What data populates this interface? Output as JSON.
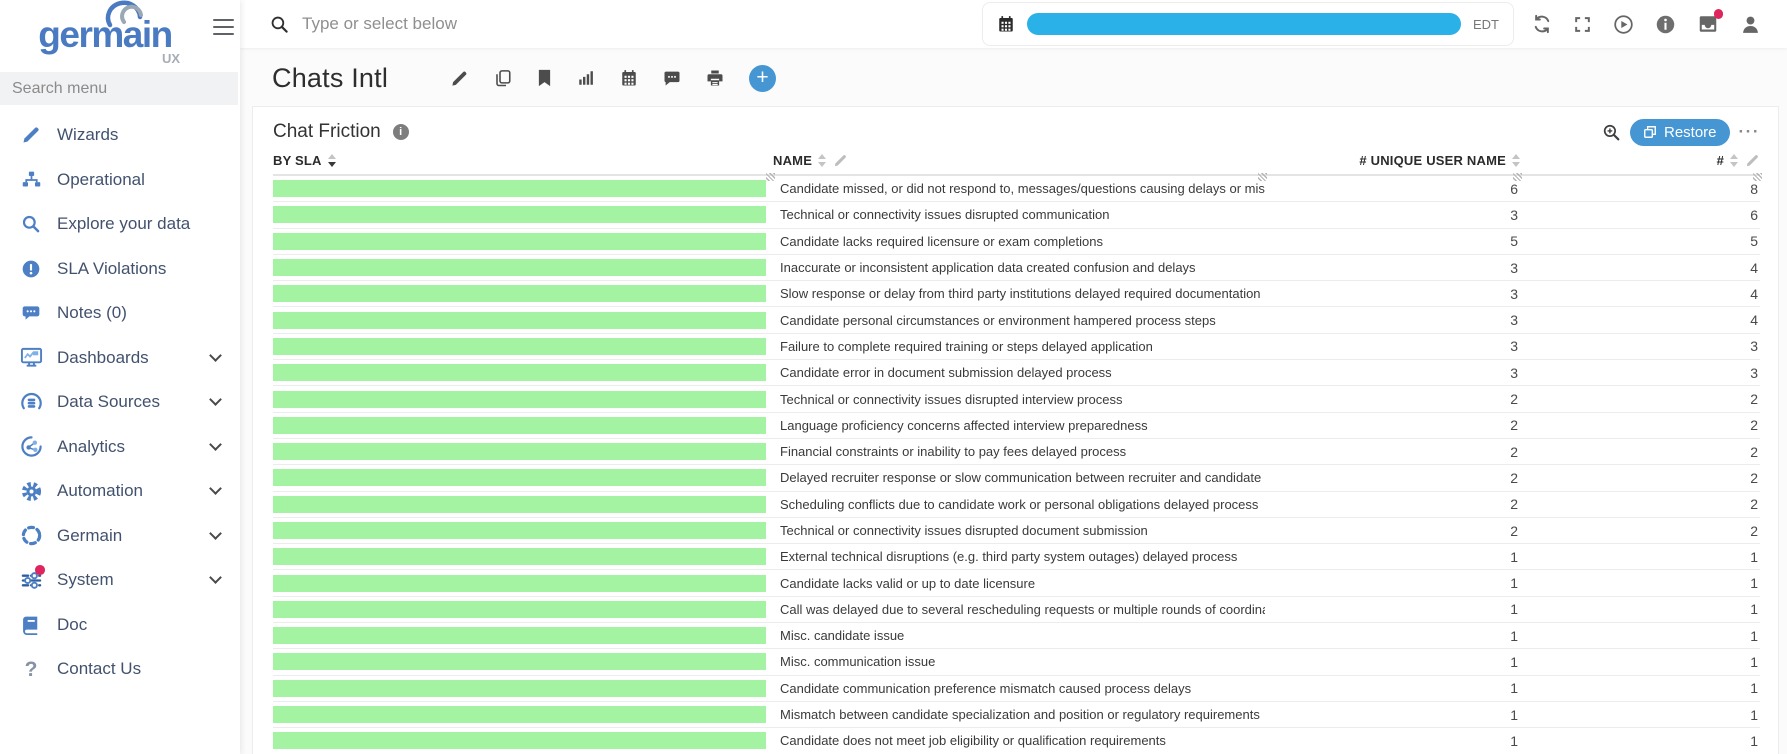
{
  "colors": {
    "sidebar_icon_blue": "#4d7fc4",
    "accent_blue": "#4596d3",
    "bar_green": "#a4f3a2",
    "redaction_blue": "#2ab1e8",
    "badge_red": "#e0245e"
  },
  "sidebar": {
    "brand": "germain",
    "brand_sub": "ux",
    "menu_search_placeholder": "Search menu",
    "items": [
      {
        "label": "Wizards",
        "icon": "pencil-icon"
      },
      {
        "label": "Operational",
        "icon": "sitemap-icon"
      },
      {
        "label": "Explore your data",
        "icon": "search-icon"
      },
      {
        "label": "SLA Violations",
        "icon": "alert-icon"
      },
      {
        "label": "Notes (0)",
        "icon": "comments-icon"
      },
      {
        "label": "Dashboards",
        "icon": "dashboard-icon",
        "expandable": true
      },
      {
        "label": "Data Sources",
        "icon": "database-icon",
        "expandable": true
      },
      {
        "label": "Analytics",
        "icon": "analytics-icon",
        "expandable": true
      },
      {
        "label": "Automation",
        "icon": "gear-icon",
        "expandable": true
      },
      {
        "label": "Germain",
        "icon": "dashed-circle-icon",
        "expandable": true
      },
      {
        "label": "System",
        "icon": "sliders-icon",
        "expandable": true,
        "badge": true
      },
      {
        "label": "Doc",
        "icon": "book-icon"
      },
      {
        "label": "Contact Us",
        "icon": "question-icon"
      }
    ]
  },
  "topbar": {
    "search_placeholder": "Type or select below",
    "timezone": "EDT",
    "actions": [
      {
        "icon": "refresh-icon"
      },
      {
        "icon": "fullscreen-icon"
      },
      {
        "icon": "play-icon"
      },
      {
        "icon": "info-icon"
      },
      {
        "icon": "inbox-icon",
        "badge": true
      },
      {
        "icon": "user-icon"
      }
    ]
  },
  "page": {
    "title": "Chats Intl",
    "tools": [
      {
        "icon": "edit-icon"
      },
      {
        "icon": "copy-icon"
      },
      {
        "icon": "bookmark-icon"
      },
      {
        "icon": "chart-bars-icon"
      },
      {
        "icon": "calendar-icon"
      },
      {
        "icon": "comment-icon"
      },
      {
        "icon": "print-icon"
      },
      {
        "icon": "add-icon"
      }
    ]
  },
  "panel": {
    "title": "Chat Friction",
    "restore_label": "Restore",
    "table": {
      "headers": [
        "BY SLA",
        "NAME",
        "# UNIQUE USER NAME",
        "#"
      ],
      "rows": [
        {
          "name": "Candidate missed, or did not respond to, messages/questions causing delays or missed miles",
          "unique_users": 6,
          "count": 8
        },
        {
          "name": "Technical or connectivity issues disrupted communication",
          "unique_users": 3,
          "count": 6
        },
        {
          "name": "Candidate lacks required licensure or exam completions",
          "unique_users": 5,
          "count": 5
        },
        {
          "name": "Inaccurate or inconsistent application data created confusion and delays",
          "unique_users": 3,
          "count": 4
        },
        {
          "name": "Slow response or delay from third party institutions delayed required documentation",
          "unique_users": 3,
          "count": 4
        },
        {
          "name": "Candidate personal circumstances or environment hampered process steps",
          "unique_users": 3,
          "count": 4
        },
        {
          "name": "Failure to complete required training or steps delayed application",
          "unique_users": 3,
          "count": 3
        },
        {
          "name": "Candidate error in document submission delayed process",
          "unique_users": 3,
          "count": 3
        },
        {
          "name": "Technical or connectivity issues disrupted interview process",
          "unique_users": 2,
          "count": 2
        },
        {
          "name": "Language proficiency concerns affected interview preparedness",
          "unique_users": 2,
          "count": 2
        },
        {
          "name": "Financial constraints or inability to pay fees delayed process",
          "unique_users": 2,
          "count": 2
        },
        {
          "name": "Delayed recruiter response or slow communication between recruiter and candidate",
          "unique_users": 2,
          "count": 2
        },
        {
          "name": "Scheduling conflicts due to candidate work or personal obligations delayed process",
          "unique_users": 2,
          "count": 2
        },
        {
          "name": "Technical or connectivity issues disrupted document submission",
          "unique_users": 2,
          "count": 2
        },
        {
          "name": "External technical disruptions (e.g. third party system outages) delayed process",
          "unique_users": 1,
          "count": 1
        },
        {
          "name": "Candidate lacks valid or up to date licensure",
          "unique_users": 1,
          "count": 1
        },
        {
          "name": "Call was delayed due to several rescheduling requests or multiple rounds of coordination to c",
          "unique_users": 1,
          "count": 1
        },
        {
          "name": "Misc. candidate issue",
          "unique_users": 1,
          "count": 1
        },
        {
          "name": "Misc. communication issue",
          "unique_users": 1,
          "count": 1
        },
        {
          "name": "Candidate communication preference mismatch caused process delays",
          "unique_users": 1,
          "count": 1
        },
        {
          "name": "Mismatch between candidate specialization and position or regulatory requirements",
          "unique_users": 1,
          "count": 1
        },
        {
          "name": "Candidate does not meet job eligibility or qualification requirements",
          "unique_users": 1,
          "count": 1
        }
      ]
    }
  }
}
